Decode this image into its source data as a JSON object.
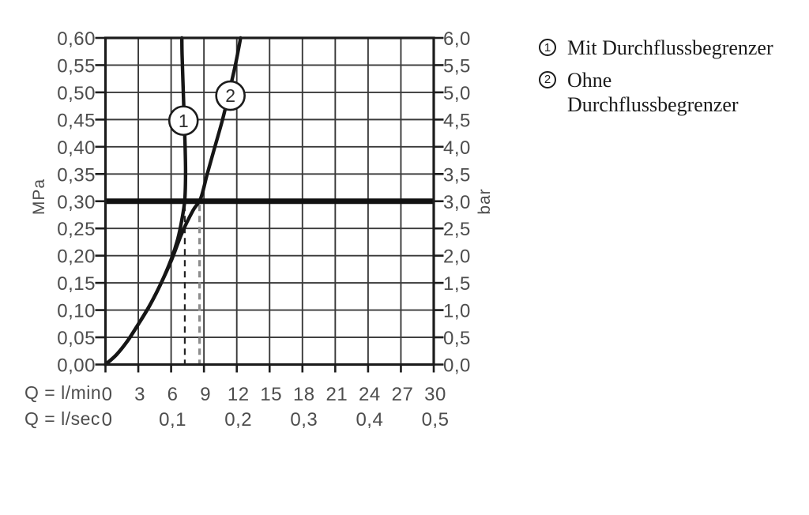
{
  "colors": {
    "background": "#ffffff",
    "ink": "#1c1c1c",
    "curve": "#161616",
    "grid": "#3a3a3a",
    "text": "#4d4d4d",
    "reference_line": "#111111",
    "dash_black": "#222222",
    "dash_gray": "#8d8d8d",
    "marker_fill": "#ffffff"
  },
  "chart_data": {
    "type": "line",
    "description": "Pressure vs. flow-rate diagram with and without flow limiter",
    "x_axis": {
      "row1_label": "Q = l/min",
      "row2_label": "Q = l/sec",
      "range": [
        0,
        30
      ],
      "ticks_lmin": [
        {
          "v": 0,
          "label": "0"
        },
        {
          "v": 3,
          "label": "3"
        },
        {
          "v": 6,
          "label": "6"
        },
        {
          "v": 9,
          "label": "9"
        },
        {
          "v": 12,
          "label": "12"
        },
        {
          "v": 15,
          "label": "15"
        },
        {
          "v": 18,
          "label": "18"
        },
        {
          "v": 21,
          "label": "21"
        },
        {
          "v": 24,
          "label": "24"
        },
        {
          "v": 27,
          "label": "27"
        },
        {
          "v": 30,
          "label": "30"
        }
      ],
      "ticks_lsec": [
        {
          "v": 0,
          "label": "0"
        },
        {
          "v": 6,
          "label": "0,1"
        },
        {
          "v": 12,
          "label": "0,2"
        },
        {
          "v": 18,
          "label": "0,3"
        },
        {
          "v": 24,
          "label": "0,4"
        },
        {
          "v": 30,
          "label": "0,5"
        }
      ]
    },
    "y_axis_left": {
      "label": "MPa",
      "range": [
        0,
        0.6
      ],
      "ticks": [
        {
          "v": 0.6,
          "label": "0,60"
        },
        {
          "v": 0.55,
          "label": "0,55"
        },
        {
          "v": 0.5,
          "label": "0,50"
        },
        {
          "v": 0.45,
          "label": "0,45"
        },
        {
          "v": 0.4,
          "label": "0,40"
        },
        {
          "v": 0.35,
          "label": "0,35"
        },
        {
          "v": 0.3,
          "label": "0,30"
        },
        {
          "v": 0.25,
          "label": "0,25"
        },
        {
          "v": 0.2,
          "label": "0,20"
        },
        {
          "v": 0.15,
          "label": "0,15"
        },
        {
          "v": 0.1,
          "label": "0,10"
        },
        {
          "v": 0.05,
          "label": "0,05"
        },
        {
          "v": 0.0,
          "label": "0,00"
        }
      ]
    },
    "y_axis_right": {
      "label": "bar",
      "range": [
        0,
        6
      ],
      "ticks": [
        {
          "v": 6.0,
          "label": "6,0"
        },
        {
          "v": 5.5,
          "label": "5,5"
        },
        {
          "v": 5.0,
          "label": "5,0"
        },
        {
          "v": 4.5,
          "label": "4,5"
        },
        {
          "v": 4.0,
          "label": "4,0"
        },
        {
          "v": 3.5,
          "label": "3,5"
        },
        {
          "v": 3.0,
          "label": "3,0"
        },
        {
          "v": 2.5,
          "label": "2,5"
        },
        {
          "v": 2.0,
          "label": "2,0"
        },
        {
          "v": 1.5,
          "label": "1,5"
        },
        {
          "v": 1.0,
          "label": "1,0"
        },
        {
          "v": 0.5,
          "label": "0,5"
        },
        {
          "v": 0.0,
          "label": "0,0"
        }
      ]
    },
    "reference_line": {
      "mpa": 0.3,
      "bar": 3.0
    },
    "dashed_guides": [
      {
        "lmin": 7.25,
        "style": "black",
        "meaning": "flow at 0.3 MPa with limiter"
      },
      {
        "lmin": 8.6,
        "style": "gray",
        "meaning": "flow at 0.3 MPa without limiter"
      }
    ],
    "series": [
      {
        "marker": "1",
        "name": "Mit Durchflussbegrenzer",
        "points": [
          [
            0,
            0
          ],
          [
            1,
            0.018
          ],
          [
            2,
            0.043
          ],
          [
            3,
            0.074
          ],
          [
            4,
            0.107
          ],
          [
            5,
            0.146
          ],
          [
            6,
            0.193
          ],
          [
            6.6,
            0.23
          ],
          [
            7.0,
            0.268
          ],
          [
            7.25,
            0.303
          ],
          [
            7.32,
            0.35
          ],
          [
            7.28,
            0.4
          ],
          [
            7.18,
            0.46
          ],
          [
            7.08,
            0.52
          ],
          [
            7.0,
            0.57
          ],
          [
            6.98,
            0.6
          ]
        ]
      },
      {
        "marker": "2",
        "name": "Ohne Durchflussbegrenzer",
        "points": [
          [
            0,
            0
          ],
          [
            1,
            0.018
          ],
          [
            2,
            0.043
          ],
          [
            3,
            0.074
          ],
          [
            4,
            0.107
          ],
          [
            5,
            0.146
          ],
          [
            6,
            0.19
          ],
          [
            7,
            0.242
          ],
          [
            8,
            0.283
          ],
          [
            8.7,
            0.305
          ],
          [
            9.3,
            0.35
          ],
          [
            10,
            0.4
          ],
          [
            10.7,
            0.45
          ],
          [
            11.3,
            0.5
          ],
          [
            11.9,
            0.553
          ],
          [
            12.35,
            0.6
          ]
        ]
      }
    ],
    "marker_positions": [
      {
        "label": "1",
        "lmin": 7.13,
        "mpa": 0.448
      },
      {
        "label": "2",
        "lmin": 11.42,
        "mpa": 0.494
      }
    ]
  },
  "legend": {
    "items": [
      {
        "symbol": "1",
        "label": "Mit Durchflussbegrenzer"
      },
      {
        "symbol": "2",
        "label": "Ohne Durchflussbegrenzer"
      }
    ]
  }
}
